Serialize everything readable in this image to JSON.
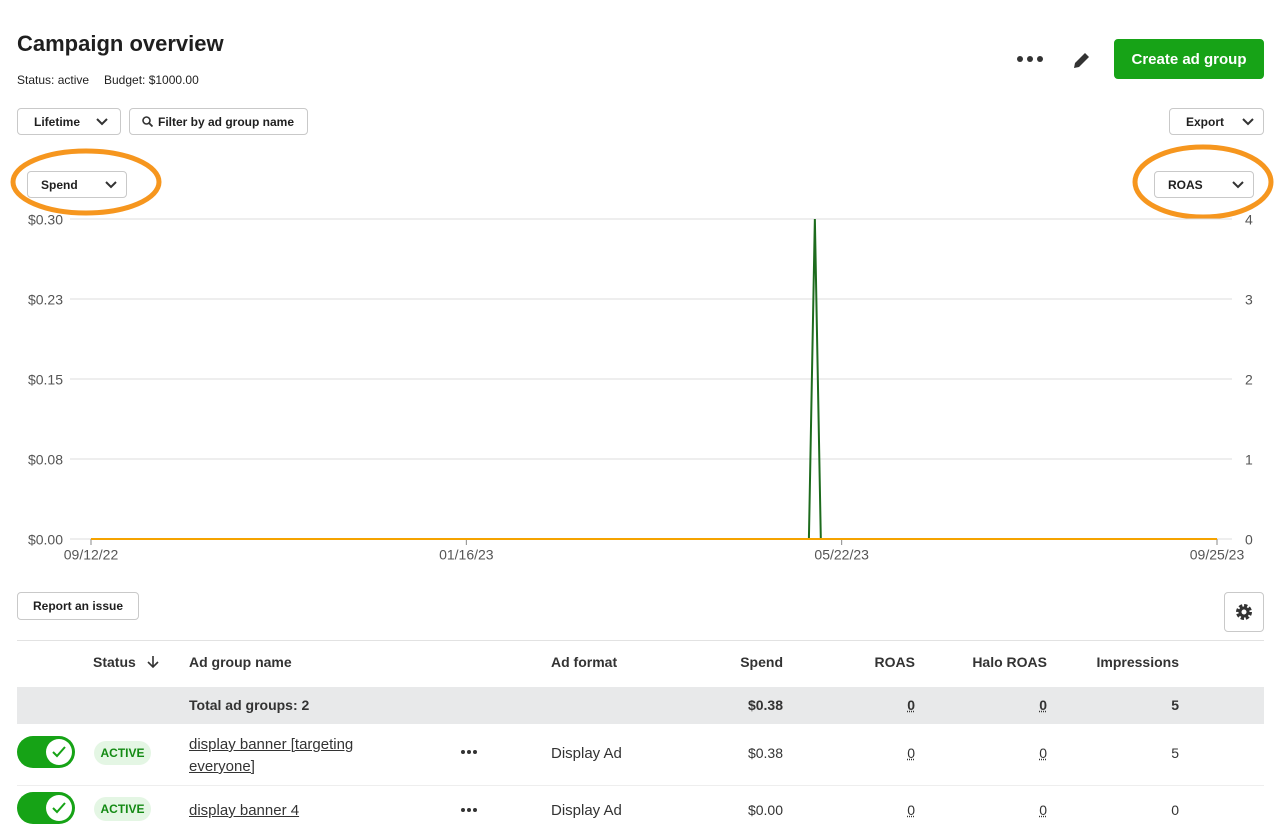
{
  "header": {
    "title": "Campaign overview",
    "status": "Status: active",
    "budget": "Budget: $1000.00"
  },
  "buttons": {
    "create": "Create ad group",
    "lifetime": "Lifetime",
    "filter": "Filter by ad group name",
    "export": "Export",
    "report": "Report an issue"
  },
  "chart_data": {
    "type": "line",
    "x": [
      "09/12/22",
      "05/11/23",
      "05/13/23",
      "05/15/23",
      "09/25/23"
    ],
    "xlim": [
      "09/12/22",
      "09/25/23"
    ],
    "xticks": [
      "09/12/22",
      "01/16/23",
      "05/22/23",
      "09/25/23"
    ],
    "ylim": [
      0,
      0.3
    ],
    "yticks": [
      {
        "value": 0,
        "label": "$0.00"
      },
      {
        "value": 0.075,
        "label": "$0.08"
      },
      {
        "value": 0.15,
        "label": "$0.15"
      },
      {
        "value": 0.225,
        "label": "$0.23"
      },
      {
        "value": 0.3,
        "label": "$0.30"
      }
    ],
    "y2lim": [
      0,
      4
    ],
    "y2ticks": [
      0,
      1,
      2,
      3,
      4
    ],
    "grid": true,
    "series": [
      {
        "name": "Spend",
        "color": "#f5a300",
        "values": [
          0,
          0,
          0,
          0,
          0
        ]
      },
      {
        "name": "ROAS",
        "color": "#1d6b1d",
        "axis": "y2",
        "values": [
          0,
          0,
          4,
          0,
          0
        ]
      }
    ]
  },
  "table": {
    "columns": [
      "Status",
      "Ad group name",
      "Ad format",
      "Spend",
      "ROAS",
      "Halo ROAS",
      "Impressions"
    ],
    "total": {
      "label": "Total ad groups: 2",
      "spend": "$0.38",
      "roas": 0,
      "halo_roas": 0,
      "impressions": 5
    },
    "rows": [
      {
        "status": "ACTIVE",
        "name": "display banner [targeting everyone]",
        "format": "Display Ad",
        "spend": "$0.38",
        "roas": 0,
        "halo_roas": 0,
        "impressions": 5
      },
      {
        "status": "ACTIVE",
        "name": "display banner 4",
        "format": "Display Ad",
        "spend": "$0.00",
        "roas": 0,
        "halo_roas": 0,
        "impressions": 0
      }
    ]
  }
}
